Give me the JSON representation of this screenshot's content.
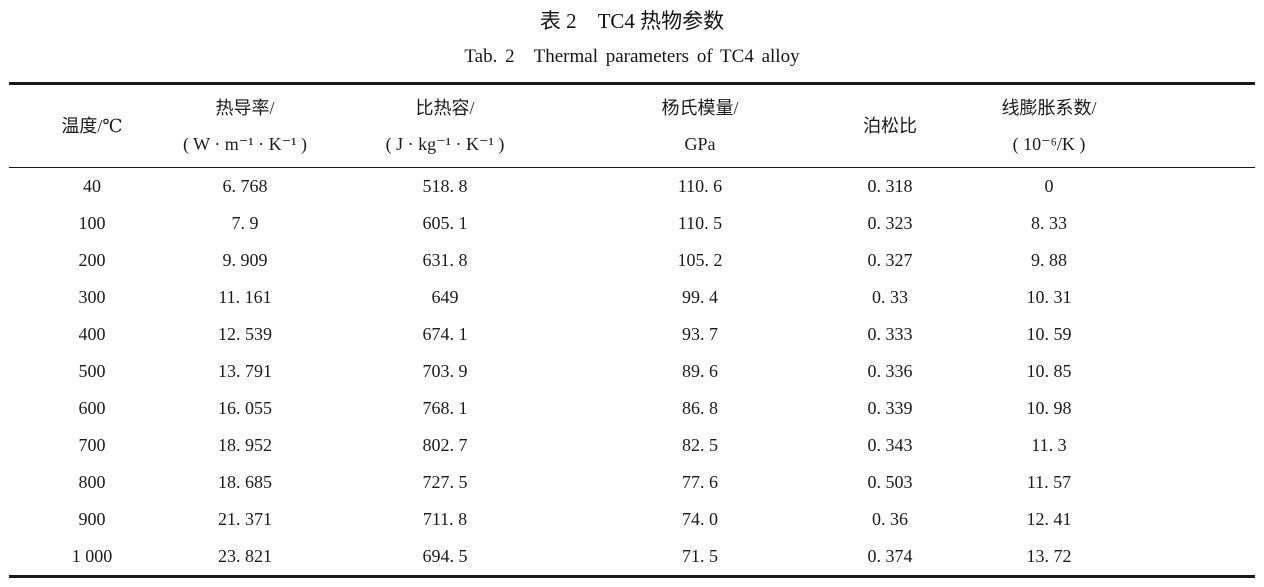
{
  "page": {
    "background": "#ffffff",
    "text_color": "#1a1a1a",
    "rule_color": "#1c1c1c"
  },
  "title": {
    "zh": "表 2　TC4 热物参数",
    "en": "Tab. 2　Thermal parameters of TC4 alloy"
  },
  "table": {
    "columns": [
      {
        "name": "temperature",
        "line1": "温度/℃",
        "line2": ""
      },
      {
        "name": "thermal-conductivity",
        "line1": "热导率/",
        "line2": "( W · m⁻¹ · K⁻¹ )"
      },
      {
        "name": "specific-heat",
        "line1": "比热容/",
        "line2": "( J · kg⁻¹ · K⁻¹ )"
      },
      {
        "name": "youngs-modulus",
        "line1": "杨氏模量/",
        "line2": "GPa"
      },
      {
        "name": "poissons-ratio",
        "line1": "泊松比",
        "line2": ""
      },
      {
        "name": "linear-expansion",
        "line1": "线膨胀系数/",
        "line2": "( 10⁻⁶/K )"
      }
    ],
    "rows": [
      [
        "40",
        "6. 768",
        "518. 8",
        "110. 6",
        "0. 318",
        "0"
      ],
      [
        "100",
        "7. 9",
        "605. 1",
        "110. 5",
        "0. 323",
        "8. 33"
      ],
      [
        "200",
        "9. 909",
        "631. 8",
        "105. 2",
        "0. 327",
        "9. 88"
      ],
      [
        "300",
        "11. 161",
        "649",
        "99. 4",
        "0. 33",
        "10. 31"
      ],
      [
        "400",
        "12. 539",
        "674. 1",
        "93. 7",
        "0. 333",
        "10. 59"
      ],
      [
        "500",
        "13. 791",
        "703. 9",
        "89. 6",
        "0. 336",
        "10. 85"
      ],
      [
        "600",
        "16. 055",
        "768. 1",
        "86. 8",
        "0. 339",
        "10. 98"
      ],
      [
        "700",
        "18. 952",
        "802. 7",
        "82. 5",
        "0. 343",
        "11. 3"
      ],
      [
        "800",
        "18. 685",
        "727. 5",
        "77. 6",
        "0. 503",
        "11. 57"
      ],
      [
        "900",
        "21. 371",
        "711. 8",
        "74. 0",
        "0. 36",
        "12. 41"
      ],
      [
        "1 000",
        "23. 821",
        "694. 5",
        "71. 5",
        "0. 374",
        "13. 72"
      ]
    ]
  }
}
